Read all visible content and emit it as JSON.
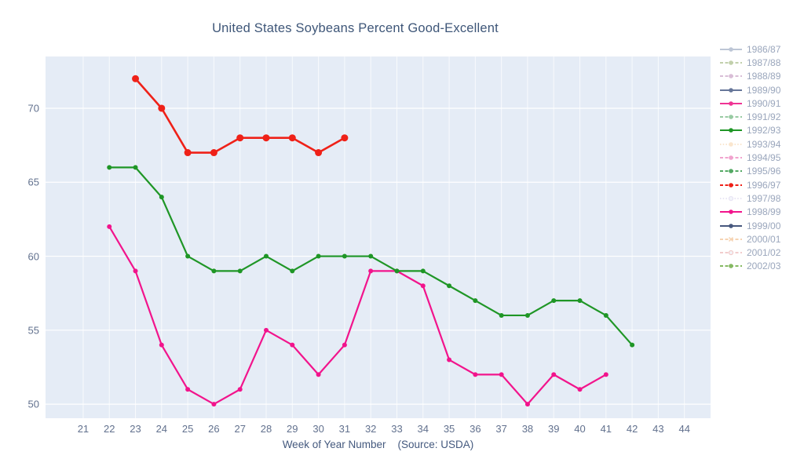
{
  "title": "United States Soybeans Percent Good-Excellent",
  "x_axis_title": "Week of Year Number    (Source: USDA)",
  "colors": {
    "plot_background": "#e5ecf6",
    "gridline": "#ffffff",
    "title_text": "#3e5678",
    "tick_text": "#62718e",
    "legend_text": "#9aa6bc"
  },
  "legend": {
    "items": [
      {
        "label": "1986/87",
        "color": "#7d8eae",
        "dash": "solid",
        "marker": "dot",
        "opacity": 0.5
      },
      {
        "label": "1987/88",
        "color": "#87a35c",
        "dash": "dash",
        "marker": "dot",
        "opacity": 0.5
      },
      {
        "label": "1988/89",
        "color": "#b47fb0",
        "dash": "dash",
        "marker": "dot",
        "opacity": 0.5
      },
      {
        "label": "1989/90",
        "color": "#56688f",
        "dash": "solid",
        "marker": "dot",
        "opacity": 0.9
      },
      {
        "label": "1990/91",
        "color": "#ef3494",
        "dash": "solid",
        "marker": "dot",
        "opacity": 1
      },
      {
        "label": "1991/92",
        "color": "#57a967",
        "dash": "dash",
        "marker": "dot",
        "opacity": 0.6
      },
      {
        "label": "1992/93",
        "color": "#1f9626",
        "dash": "solid",
        "marker": "dot",
        "opacity": 1
      },
      {
        "label": "1993/94",
        "color": "#f4c995",
        "dash": "dot",
        "marker": "dot",
        "opacity": 0.45
      },
      {
        "label": "1994/95",
        "color": "#e867ae",
        "dash": "dash",
        "marker": "dot",
        "opacity": 0.6
      },
      {
        "label": "1995/96",
        "color": "#379b49",
        "dash": "dash",
        "marker": "dot",
        "opacity": 0.85
      },
      {
        "label": "1996/97",
        "color": "#ef2118",
        "dash": "dash",
        "marker": "dot",
        "opacity": 1
      },
      {
        "label": "1997/98",
        "color": "#c9bfe6",
        "dash": "dot",
        "marker": "open",
        "opacity": 0.4
      },
      {
        "label": "1998/99",
        "color": "#f2148c",
        "dash": "solid",
        "marker": "dot",
        "opacity": 1
      },
      {
        "label": "1999/00",
        "color": "#3e5078",
        "dash": "solid",
        "marker": "dot",
        "opacity": 0.95
      },
      {
        "label": "2000/01",
        "color": "#efa868",
        "dash": "dash",
        "marker": "x",
        "opacity": 0.5
      },
      {
        "label": "2001/02",
        "color": "#e4908f",
        "dash": "dash",
        "marker": "open",
        "opacity": 0.45
      },
      {
        "label": "2002/03",
        "color": "#68a83d",
        "dash": "dash",
        "marker": "dot",
        "opacity": 0.8
      }
    ]
  },
  "chart_data": {
    "type": "line",
    "title": "United States Soybeans Percent Good-Excellent",
    "xlabel": "Week of Year Number",
    "source_note": "(Source: USDA)",
    "ylabel": "",
    "xlim": [
      19.56,
      45.0
    ],
    "ylim": [
      49.05,
      73.5
    ],
    "xticks": [
      21,
      22,
      23,
      24,
      25,
      26,
      27,
      28,
      29,
      30,
      31,
      32,
      33,
      34,
      35,
      36,
      37,
      38,
      39,
      40,
      41,
      42,
      43,
      44
    ],
    "yticks": [
      50,
      55,
      60,
      65,
      70
    ],
    "grid": true,
    "legend_position": "right",
    "series": [
      {
        "name": "1990/91",
        "color": "#f2148c",
        "line_width": 2.2,
        "marker_size": 3,
        "x": [
          22,
          23,
          24,
          25,
          26,
          27,
          28,
          29,
          30,
          31,
          32,
          33,
          34,
          35,
          36,
          37,
          38,
          39,
          40,
          41
        ],
        "values": [
          62,
          59,
          54,
          51,
          50,
          51,
          55,
          54,
          52,
          54,
          59,
          59,
          58,
          53,
          52,
          52,
          50,
          52,
          51,
          52
        ]
      },
      {
        "name": "1992/93",
        "color": "#1f9626",
        "line_width": 2.2,
        "marker_size": 3,
        "x": [
          22,
          23,
          24,
          25,
          26,
          27,
          28,
          29,
          30,
          31,
          32,
          33,
          34,
          35,
          36,
          37,
          38,
          39,
          40,
          41,
          42
        ],
        "values": [
          66,
          66,
          64,
          60,
          59,
          59,
          60,
          59,
          60,
          60,
          60,
          59,
          59,
          58,
          57,
          56,
          56,
          57,
          57,
          56,
          54
        ]
      },
      {
        "name": "1996/97",
        "color": "#ef2118",
        "line_width": 2.6,
        "marker_size": 4.5,
        "x": [
          23,
          24,
          25,
          26,
          27,
          28,
          29,
          30,
          31
        ],
        "values": [
          72,
          70,
          67,
          67,
          68,
          68,
          68,
          67,
          68
        ]
      }
    ]
  }
}
